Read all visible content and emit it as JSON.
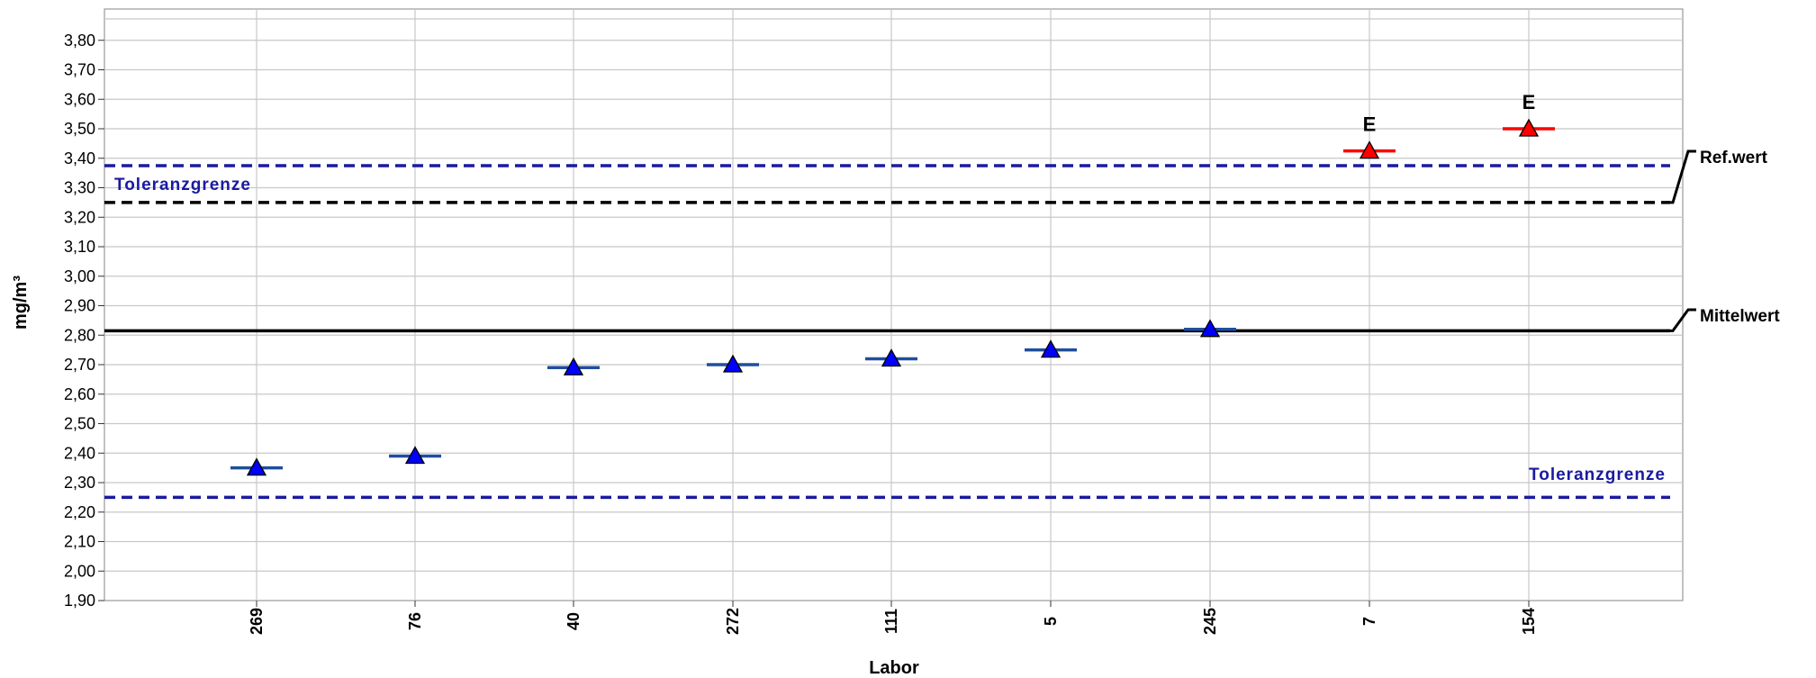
{
  "chart_data": {
    "type": "scatter",
    "xlabel": "Labor",
    "ylabel": "mg/m³",
    "ylim": [
      1.9,
      3.85
    ],
    "yticks": [
      "1,90",
      "2,00",
      "2,10",
      "2,20",
      "2,30",
      "2,40",
      "2,50",
      "2,60",
      "2,70",
      "2,80",
      "2,90",
      "3,00",
      "3,10",
      "3,20",
      "3,30",
      "3,40",
      "3,50",
      "3,60",
      "3,70",
      "3,80"
    ],
    "categories": [
      "269",
      "76",
      "40",
      "272",
      "111",
      "5",
      "245",
      "7",
      "154"
    ],
    "values": [
      2.35,
      2.39,
      2.69,
      2.7,
      2.72,
      2.75,
      2.82,
      3.425,
      3.5
    ],
    "flags": [
      "",
      "",
      "",
      "",
      "",
      "",
      "",
      "E",
      "E"
    ],
    "grid": true,
    "reference_lines": [
      {
        "label": "Toleranzgrenze",
        "value": 3.375,
        "style": "dashed",
        "color": "#1a1aa0"
      },
      {
        "label": "Ref.wert",
        "value": 3.25,
        "style": "dashed",
        "color": "#000000"
      },
      {
        "label": "Mittelwert",
        "value": 2.815,
        "style": "solid",
        "color": "#000000"
      },
      {
        "label": "Toleranzgrenze",
        "value": 2.25,
        "style": "dashed",
        "color": "#1a1aa0"
      }
    ],
    "colors": {
      "normal_marker": "#0000ff",
      "normal_bar": "#1f4e9e",
      "flagged_marker": "#ff0000",
      "flagged_bar": "#ff0000",
      "tolerance": "#1a1aa0"
    }
  },
  "labels": {
    "tolerance_upper": "Toleranzgrenze",
    "tolerance_lower": "Toleranzgrenze",
    "ref_value": "Ref.wert",
    "mean_value": "Mittelwert"
  }
}
